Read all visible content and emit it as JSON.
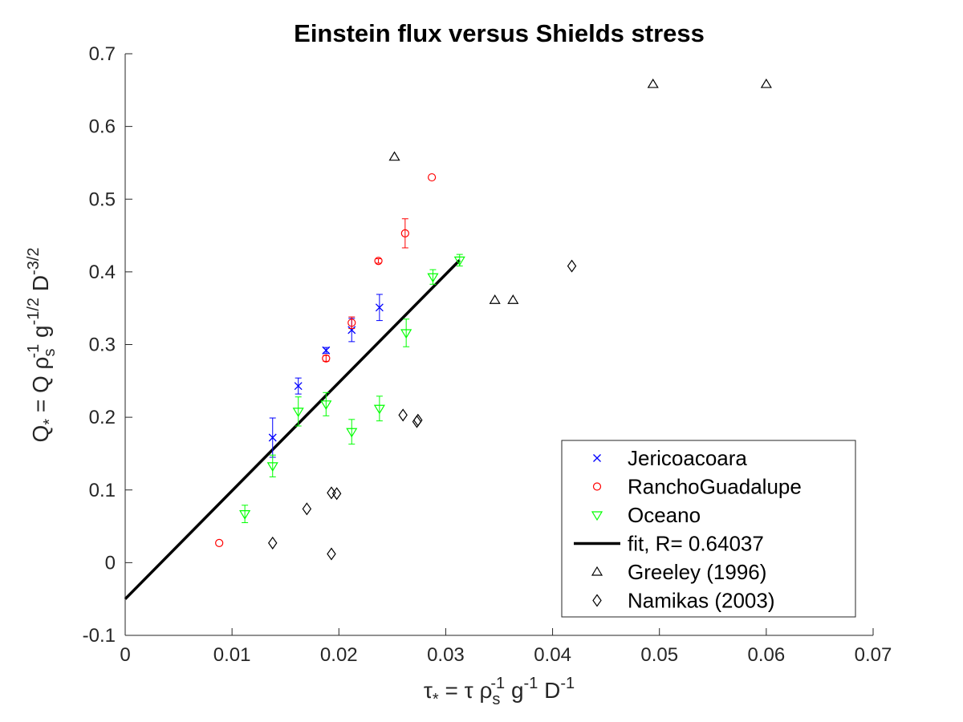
{
  "chart_data": {
    "type": "scatter",
    "title": "Einstein flux versus Shields stress",
    "xlabel": {
      "parts": [
        "τ",
        "*",
        " = τ ρ",
        "s",
        "-1",
        " g",
        "-1",
        " D",
        "-1"
      ]
    },
    "ylabel": {
      "parts": [
        "Q",
        "*",
        " = Q ρ",
        "s",
        "-1",
        " g",
        "-1/2",
        " D",
        "-3/2"
      ]
    },
    "xlim": [
      0,
      0.07
    ],
    "ylim": [
      -0.1,
      0.7
    ],
    "xticks": [
      "0",
      "0.01",
      "0.02",
      "0.03",
      "0.04",
      "0.05",
      "0.06",
      "0.07"
    ],
    "yticks": [
      "-0.1",
      "0",
      "0.1",
      "0.2",
      "0.3",
      "0.4",
      "0.5",
      "0.6",
      "0.7"
    ],
    "xtick_values": [
      0,
      0.01,
      0.02,
      0.03,
      0.04,
      0.05,
      0.06,
      0.07
    ],
    "ytick_values": [
      -0.1,
      0,
      0.1,
      0.2,
      0.3,
      0.4,
      0.5,
      0.6,
      0.7
    ],
    "grid": false,
    "legend_position": "bottom-right",
    "series": [
      {
        "name": "Jericoacoara",
        "marker": "x",
        "color": "#0000ff",
        "points": [
          [
            0.0138,
            0.172,
            0.027
          ],
          [
            0.0162,
            0.243,
            0.011
          ],
          [
            0.0188,
            0.292,
            0.004
          ],
          [
            0.0212,
            0.32,
            0.016
          ],
          [
            0.0238,
            0.351,
            0.018
          ]
        ]
      },
      {
        "name": "RanchoGuadalupe",
        "marker": "o",
        "color": "#ff0000",
        "points": [
          [
            0.0088,
            0.027,
            0
          ],
          [
            0.0188,
            0.281,
            0.004
          ],
          [
            0.0212,
            0.33,
            0.008
          ],
          [
            0.0237,
            0.415,
            0.003
          ],
          [
            0.0262,
            0.453,
            0.02
          ],
          [
            0.0287,
            0.53,
            0
          ]
        ]
      },
      {
        "name": "Oceano",
        "marker": "v",
        "color": "#00ff00",
        "points": [
          [
            0.0112,
            0.067,
            0.012
          ],
          [
            0.0138,
            0.133,
            0.015
          ],
          [
            0.0162,
            0.208,
            0.02
          ],
          [
            0.0188,
            0.218,
            0.016
          ],
          [
            0.0212,
            0.18,
            0.017
          ],
          [
            0.0238,
            0.212,
            0.017
          ],
          [
            0.0263,
            0.316,
            0.019
          ],
          [
            0.0288,
            0.393,
            0.01
          ],
          [
            0.0313,
            0.416,
            0.008
          ]
        ]
      },
      {
        "name": "fit, R= 0.64037",
        "type": "line",
        "color": "#000000",
        "points": [
          [
            0,
            -0.05
          ],
          [
            0.0313,
            0.416
          ]
        ]
      },
      {
        "name": "Greeley (1996)",
        "marker": "^",
        "color": "#000000",
        "points": [
          [
            0.0252,
            0.558
          ],
          [
            0.0346,
            0.361
          ],
          [
            0.0363,
            0.361
          ],
          [
            0.0494,
            0.658
          ],
          [
            0.06,
            0.658
          ]
        ]
      },
      {
        "name": "Namikas (2003)",
        "marker": "d",
        "color": "#000000",
        "points": [
          [
            0.0138,
            0.027
          ],
          [
            0.017,
            0.074
          ],
          [
            0.0193,
            0.012
          ],
          [
            0.0193,
            0.096
          ],
          [
            0.0198,
            0.095
          ],
          [
            0.026,
            0.203
          ],
          [
            0.0273,
            0.194
          ],
          [
            0.0274,
            0.196
          ],
          [
            0.0418,
            0.408
          ]
        ]
      }
    ]
  }
}
